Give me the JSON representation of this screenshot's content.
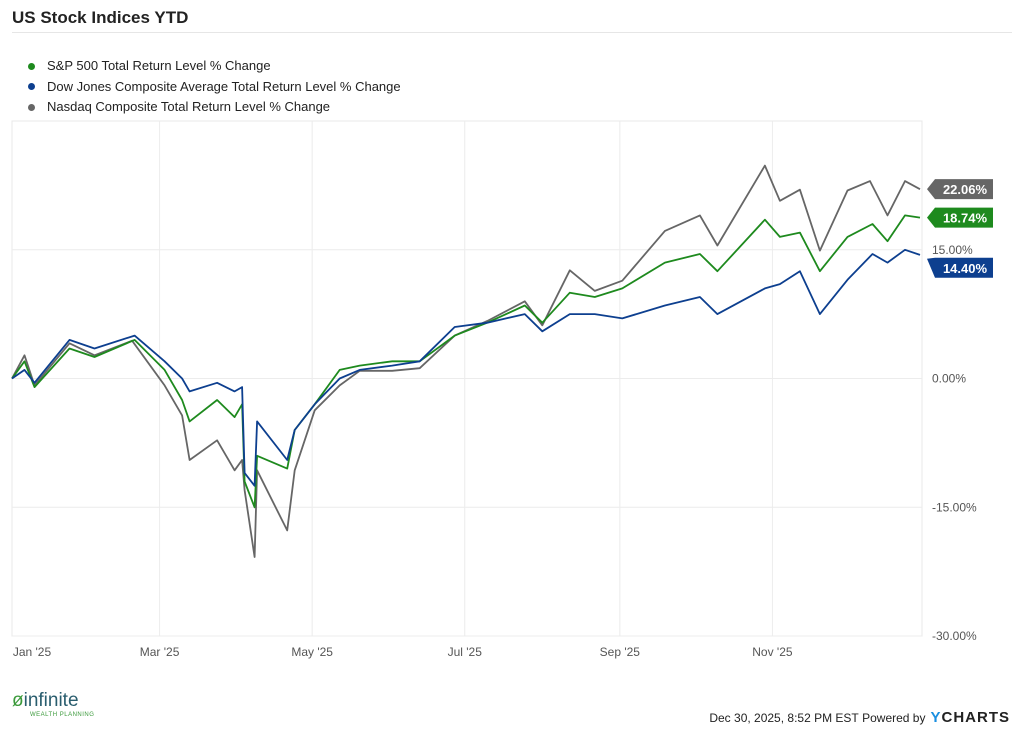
{
  "chart_data": {
    "type": "line",
    "title": "US Stock Indices YTD",
    "xlim": [
      "2025-01-01",
      "2025-12-30"
    ],
    "ylim": [
      -30,
      30
    ],
    "yticks": [
      {
        "value": 15,
        "label": "15.00%"
      },
      {
        "value": 0,
        "label": "0.00%"
      },
      {
        "value": -15,
        "label": "-15.00%"
      },
      {
        "value": -30,
        "label": "-30.00%"
      }
    ],
    "xticks": [
      {
        "date": "2025-01-01",
        "label": "Jan '25"
      },
      {
        "date": "2025-03-01",
        "label": "Mar '25"
      },
      {
        "date": "2025-05-01",
        "label": "May '25"
      },
      {
        "date": "2025-07-01",
        "label": "Jul '25"
      },
      {
        "date": "2025-09-01",
        "label": "Sep '25"
      },
      {
        "date": "2025-11-01",
        "label": "Nov '25"
      }
    ],
    "grid": true,
    "legend_position": "top-left",
    "series": [
      {
        "name": "S&P 500 Total Return Level % Change",
        "color": "#1e8a1e",
        "last_label": "18.74%",
        "points": [
          [
            "2025-01-01",
            0
          ],
          [
            "2025-01-06",
            2
          ],
          [
            "2025-01-10",
            -1
          ],
          [
            "2025-01-24",
            3.5
          ],
          [
            "2025-02-03",
            2.5
          ],
          [
            "2025-02-19",
            4.5
          ],
          [
            "2025-03-03",
            1
          ],
          [
            "2025-03-10",
            -2.5
          ],
          [
            "2025-03-13",
            -5
          ],
          [
            "2025-03-24",
            -2.5
          ],
          [
            "2025-03-31",
            -4.5
          ],
          [
            "2025-04-03",
            -3
          ],
          [
            "2025-04-04",
            -12
          ],
          [
            "2025-04-08",
            -15
          ],
          [
            "2025-04-09",
            -9
          ],
          [
            "2025-04-21",
            -10.5
          ],
          [
            "2025-04-24",
            -6
          ],
          [
            "2025-05-02",
            -3
          ],
          [
            "2025-05-12",
            1
          ],
          [
            "2025-05-20",
            1.5
          ],
          [
            "2025-06-02",
            2
          ],
          [
            "2025-06-13",
            2
          ],
          [
            "2025-06-27",
            5
          ],
          [
            "2025-07-10",
            6.5
          ],
          [
            "2025-07-25",
            8.5
          ],
          [
            "2025-08-01",
            6.5
          ],
          [
            "2025-08-12",
            10
          ],
          [
            "2025-08-22",
            9.5
          ],
          [
            "2025-09-02",
            10.5
          ],
          [
            "2025-09-19",
            13.5
          ],
          [
            "2025-10-03",
            14.5
          ],
          [
            "2025-10-10",
            12.5
          ],
          [
            "2025-10-29",
            18.5
          ],
          [
            "2025-11-04",
            16.5
          ],
          [
            "2025-11-12",
            17
          ],
          [
            "2025-11-20",
            12.5
          ],
          [
            "2025-12-01",
            16.5
          ],
          [
            "2025-12-11",
            18
          ],
          [
            "2025-12-17",
            16
          ],
          [
            "2025-12-24",
            19
          ],
          [
            "2025-12-30",
            18.74
          ]
        ]
      },
      {
        "name": "Dow Jones Composite Average Total Return Level % Change",
        "color": "#0d3f8f",
        "last_label": "14.40%",
        "points": [
          [
            "2025-01-01",
            0
          ],
          [
            "2025-01-06",
            1
          ],
          [
            "2025-01-10",
            -0.5
          ],
          [
            "2025-01-24",
            4.5
          ],
          [
            "2025-02-03",
            3.5
          ],
          [
            "2025-02-19",
            5
          ],
          [
            "2025-03-03",
            2
          ],
          [
            "2025-03-10",
            0
          ],
          [
            "2025-03-13",
            -1.5
          ],
          [
            "2025-03-24",
            -0.5
          ],
          [
            "2025-03-31",
            -1.5
          ],
          [
            "2025-04-03",
            -1
          ],
          [
            "2025-04-04",
            -11
          ],
          [
            "2025-04-08",
            -12.5
          ],
          [
            "2025-04-09",
            -5
          ],
          [
            "2025-04-21",
            -9.5
          ],
          [
            "2025-04-24",
            -6
          ],
          [
            "2025-05-02",
            -3
          ],
          [
            "2025-05-12",
            0
          ],
          [
            "2025-05-20",
            1
          ],
          [
            "2025-06-02",
            1.5
          ],
          [
            "2025-06-13",
            2
          ],
          [
            "2025-06-27",
            6
          ],
          [
            "2025-07-10",
            6.5
          ],
          [
            "2025-07-25",
            7.5
          ],
          [
            "2025-08-01",
            5.5
          ],
          [
            "2025-08-12",
            7.5
          ],
          [
            "2025-08-22",
            7.5
          ],
          [
            "2025-09-02",
            7
          ],
          [
            "2025-09-19",
            8.5
          ],
          [
            "2025-10-03",
            9.5
          ],
          [
            "2025-10-10",
            7.5
          ],
          [
            "2025-10-29",
            10.5
          ],
          [
            "2025-11-04",
            11
          ],
          [
            "2025-11-12",
            12.5
          ],
          [
            "2025-11-20",
            7.5
          ],
          [
            "2025-12-01",
            11.5
          ],
          [
            "2025-12-11",
            14.5
          ],
          [
            "2025-12-17",
            13.5
          ],
          [
            "2025-12-24",
            15
          ],
          [
            "2025-12-30",
            14.4
          ]
        ]
      },
      {
        "name": "Nasdaq Composite Total Return Level % Change",
        "color": "#666666",
        "last_label": "22.06%",
        "points": [
          [
            "2025-01-01",
            0
          ],
          [
            "2025-01-06",
            2.7
          ],
          [
            "2025-01-10",
            -0.8
          ],
          [
            "2025-01-24",
            4.1
          ],
          [
            "2025-02-03",
            2.7
          ],
          [
            "2025-02-18",
            4.4
          ],
          [
            "2025-03-03",
            -0.8
          ],
          [
            "2025-03-10",
            -4.3
          ],
          [
            "2025-03-13",
            -9.5
          ],
          [
            "2025-03-24",
            -7.2
          ],
          [
            "2025-03-31",
            -10.7
          ],
          [
            "2025-04-03",
            -9.5
          ],
          [
            "2025-04-04",
            -13
          ],
          [
            "2025-04-08",
            -20.8
          ],
          [
            "2025-04-09",
            -10.7
          ],
          [
            "2025-04-21",
            -17.7
          ],
          [
            "2025-04-24",
            -10.7
          ],
          [
            "2025-05-02",
            -3.7
          ],
          [
            "2025-05-12",
            -0.8
          ],
          [
            "2025-05-20",
            0.9
          ],
          [
            "2025-06-02",
            0.9
          ],
          [
            "2025-06-13",
            1.2
          ],
          [
            "2025-06-27",
            5
          ],
          [
            "2025-07-10",
            6.7
          ],
          [
            "2025-07-25",
            9
          ],
          [
            "2025-08-01",
            6.2
          ],
          [
            "2025-08-12",
            12.6
          ],
          [
            "2025-08-22",
            10.2
          ],
          [
            "2025-09-02",
            11.4
          ],
          [
            "2025-09-19",
            17.2
          ],
          [
            "2025-10-03",
            19
          ],
          [
            "2025-10-10",
            15.5
          ],
          [
            "2025-10-29",
            24.8
          ],
          [
            "2025-11-04",
            20.7
          ],
          [
            "2025-11-12",
            22
          ],
          [
            "2025-11-20",
            14.9
          ],
          [
            "2025-12-01",
            21.9
          ],
          [
            "2025-12-10",
            23
          ],
          [
            "2025-12-17",
            19
          ],
          [
            "2025-12-24",
            23
          ],
          [
            "2025-12-30",
            22.06
          ]
        ]
      }
    ]
  },
  "footer": {
    "timestamp": "Dec 30, 2025, 8:52 PM EST",
    "powered_by": "Powered by",
    "brand_y": "Y",
    "brand_rest": "CHARTS",
    "logo_main": "infinite",
    "logo_sub": "WEALTH PLANNING"
  }
}
